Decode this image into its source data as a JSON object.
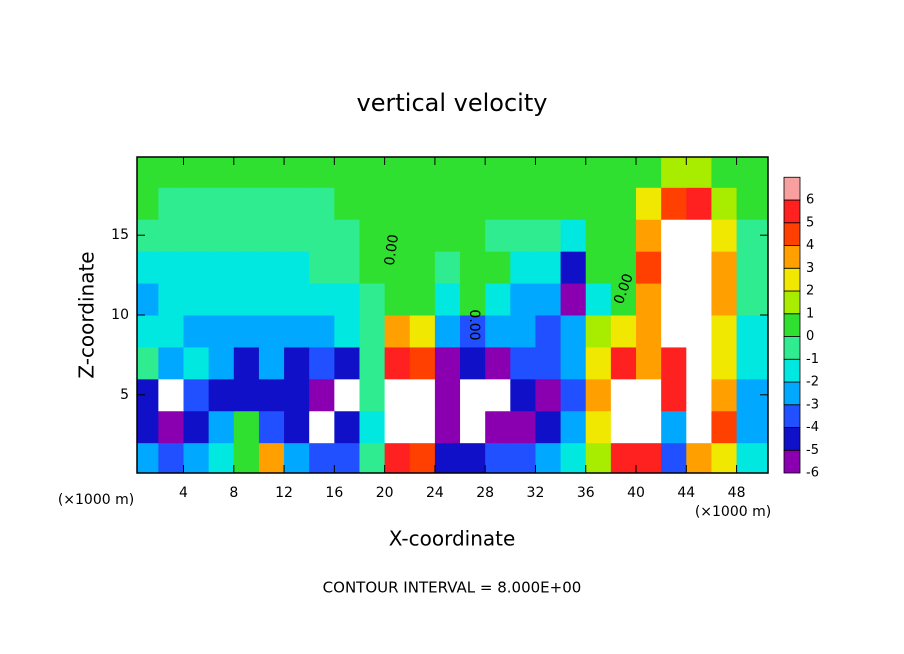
{
  "chart_data": {
    "type": "heatmap",
    "title": "vertical velocity",
    "x_label": "X-coordinate",
    "y_label": "Z-coordinate",
    "x_unit": "(×1000 m)",
    "y_unit": "(×1000 m)",
    "footer": "CONTOUR INTERVAL = 8.000E+00",
    "annotations": [
      "0.00",
      "0.00",
      "0.00"
    ],
    "x": [
      1,
      3,
      5,
      7,
      9,
      11,
      13,
      15,
      17,
      19,
      21,
      23,
      25,
      27,
      29,
      31,
      33,
      35,
      37,
      39,
      41,
      43,
      45,
      47,
      49
    ],
    "y": [
      1,
      3,
      5,
      7,
      9,
      11,
      13,
      15,
      17,
      19
    ],
    "values": [
      [
        -2.5,
        -3.0,
        -2.5,
        -1.0,
        0.8,
        3.5,
        -2.5,
        -3.5,
        -3.0,
        -0.5,
        5.5,
        5.0,
        -4.0,
        -4.5,
        -3.0,
        -3.5,
        -2.5,
        -1.0,
        1.5,
        5.5,
        5.5,
        -3.0,
        4.0,
        3.0,
        -1.5
      ],
      [
        -4.0,
        -5.5,
        -4.5,
        -2.5,
        1.0,
        -3.0,
        -4.0,
        -6.5,
        -4.5,
        -1.0,
        7.5,
        8.5,
        -6.0,
        -8.0,
        -5.5,
        -5.0,
        -4.5,
        -2.0,
        2.5,
        7.5,
        8.0,
        -2.5,
        7.5,
        4.5,
        -2.0
      ],
      [
        -4.5,
        -7.0,
        -3.5,
        -4.0,
        -4.5,
        -4.0,
        -4.5,
        -5.5,
        -7.5,
        -0.5,
        7.5,
        8.0,
        -5.5,
        -7.5,
        -6.5,
        -4.5,
        -5.0,
        -3.0,
        3.5,
        7.5,
        8.0,
        5.5,
        7.0,
        4.0,
        -2.0
      ],
      [
        -0.5,
        -2.5,
        -1.0,
        -2.5,
        -4.0,
        -2.0,
        -4.5,
        -3.0,
        -4.5,
        -0.5,
        6.0,
        5.0,
        -5.0,
        -4.0,
        -5.0,
        -3.0,
        -3.5,
        -2.0,
        3.0,
        5.5,
        3.5,
        5.5,
        6.5,
        3.0,
        -1.0
      ],
      [
        -1.2,
        -1.8,
        -2.0,
        -2.2,
        -2.0,
        -2.0,
        -2.2,
        -2.0,
        -1.8,
        -0.8,
        4.0,
        3.0,
        -2.5,
        -3.0,
        -2.0,
        -2.5,
        -3.0,
        -2.5,
        1.5,
        2.5,
        3.5,
        7.0,
        7.5,
        2.5,
        -1.5
      ],
      [
        -2.2,
        -1.5,
        -1.5,
        -1.5,
        -1.5,
        -1.5,
        -1.5,
        -1.5,
        -1.2,
        -0.5,
        0.3,
        0.2,
        -1.0,
        0.8,
        -1.2,
        -2.2,
        -2.5,
        -5.5,
        -1.0,
        0.5,
        3.5,
        8.0,
        8.5,
        4.0,
        -0.3
      ],
      [
        -1.2,
        -1.2,
        -1.2,
        -1.2,
        -1.2,
        -1.1,
        -1.0,
        -0.8,
        -0.5,
        0.2,
        0.5,
        0.3,
        -0.3,
        0.5,
        0.3,
        -1.2,
        -1.5,
        -4.0,
        0.2,
        0.5,
        4.5,
        8.0,
        7.5,
        3.5,
        -0.3
      ],
      [
        -0.5,
        -0.8,
        -0.8,
        -0.8,
        -0.8,
        -0.7,
        -0.7,
        -0.6,
        -0.3,
        0.2,
        0.5,
        0.5,
        0.3,
        0.3,
        -0.5,
        -0.3,
        -0.5,
        -1.5,
        0.2,
        0.8,
        4.0,
        7.0,
        7.5,
        3.0,
        -0.3
      ],
      [
        0.2,
        -0.3,
        -0.3,
        -0.3,
        -0.3,
        -0.3,
        -0.3,
        -0.2,
        0.2,
        0.3,
        0.5,
        0.5,
        0.4,
        0.5,
        0.3,
        0.2,
        0.3,
        0.3,
        0.5,
        0.8,
        2.5,
        5.0,
        5.5,
        2.0,
        0.3
      ],
      [
        0.5,
        0.3,
        0.3,
        0.2,
        0.2,
        0.2,
        0.2,
        0.2,
        0.3,
        0.3,
        0.4,
        0.5,
        0.5,
        0.5,
        0.3,
        0.3,
        0.3,
        0.3,
        0.3,
        0.5,
        0.8,
        1.5,
        1.8,
        1.0,
        0.3
      ]
    ],
    "xlim": [
      0.3,
      50.5
    ],
    "ylim": [
      0.1,
      19.9
    ],
    "xticks": [
      4,
      8,
      12,
      16,
      20,
      24,
      28,
      32,
      36,
      40,
      44,
      48
    ],
    "yticks": [
      5,
      10,
      15
    ],
    "colorbar": {
      "levels": [
        -6,
        -5,
        -4,
        -3,
        -2,
        -1,
        0,
        1,
        2,
        3,
        4,
        5,
        6
      ],
      "colors": [
        "#8a00b0",
        "#1010c8",
        "#2050ff",
        "#00a8ff",
        "#00e8e0",
        "#30ec90",
        "#30e030",
        "#a8ec00",
        "#f0e800",
        "#ffa000",
        "#ff4000",
        "#ff2020",
        "#f8a0a0"
      ],
      "extend_color": "#ffffff"
    }
  }
}
